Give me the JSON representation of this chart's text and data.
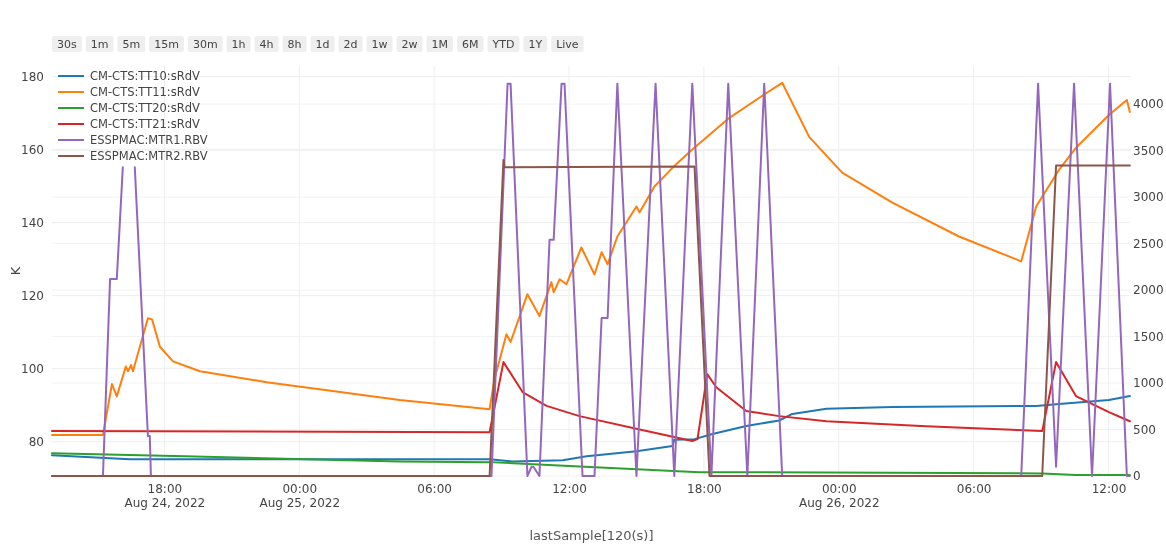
{
  "chart_data": {
    "type": "line",
    "xlabel": "lastSample[120(s)]",
    "ylabel": "K",
    "annotations": [
      "30s",
      "1m",
      "5m",
      "15m",
      "30m",
      "1h",
      "4h",
      "8h",
      "1d",
      "2d",
      "1w",
      "2w",
      "1M",
      "6M",
      "YTD",
      "1Y",
      "Live"
    ],
    "xlim": [
      "2022-08-24T13:00",
      "2022-08-26T13:00"
    ],
    "xticks": [
      {
        "value": "2022-08-24T18:00",
        "label": "18:00\nAug 24, 2022"
      },
      {
        "value": "2022-08-25T00:00",
        "label": "00:00\nAug 25, 2022"
      },
      {
        "value": "2022-08-25T06:00",
        "label": "06:00"
      },
      {
        "value": "2022-08-25T12:00",
        "label": "12:00"
      },
      {
        "value": "2022-08-25T18:00",
        "label": "18:00"
      },
      {
        "value": "2022-08-26T00:00",
        "label": "00:00\nAug 26, 2022"
      },
      {
        "value": "2022-08-26T06:00",
        "label": "06:00"
      },
      {
        "value": "2022-08-26T12:00",
        "label": "12:00"
      }
    ],
    "ylim": [
      70.6,
      182.9
    ],
    "yticks": [
      80,
      100,
      120,
      140,
      160,
      180
    ],
    "y2lim": [
      0,
      4410
    ],
    "y2ticks": [
      0,
      500,
      1000,
      1500,
      2000,
      2500,
      3000,
      3500,
      4000
    ],
    "grid": true,
    "legend": "top left",
    "line_style": "solid",
    "marker": "none",
    "series": [
      {
        "name": "CM-CTS:TT10:sRdV",
        "color": "#1f77b4",
        "x": [
          "2022-08-24T13:00",
          "2022-08-24T16:28",
          "2022-08-25T04:28",
          "2022-08-25T08:28",
          "2022-08-25T09:29",
          "2022-08-25T11:43",
          "2022-08-25T12:47",
          "2022-08-25T15:00",
          "2022-08-25T16:36",
          "2022-08-25T16:41",
          "2022-08-25T17:35",
          "2022-08-25T18:23",
          "2022-08-25T19:53",
          "2022-08-25T21:21",
          "2022-08-25T21:56",
          "2022-08-25T23:27",
          "2022-08-26T02:23",
          "2022-08-26T08:47",
          "2022-08-26T09:48",
          "2022-08-26T12:01",
          "2022-08-26T12:57"
        ],
        "values": [
          76.3,
          75.2,
          75.2,
          75.2,
          74.6,
          74.9,
          76,
          77.4,
          78.8,
          80.5,
          80.7,
          82.1,
          84.3,
          85.8,
          87.6,
          89,
          89.5,
          89.8,
          90.3,
          91.4,
          92.5
        ]
      },
      {
        "name": "CM-CTS:TT11:sRdV",
        "color": "#ff7f0e",
        "x": [
          "2022-08-24T13:00",
          "2022-08-24T15:16",
          "2022-08-24T15:40",
          "2022-08-24T15:53",
          "2022-08-24T16:17",
          "2022-08-24T16:23",
          "2022-08-24T16:31",
          "2022-08-24T16:36",
          "2022-08-24T17:16",
          "2022-08-24T17:27",
          "2022-08-24T17:48",
          "2022-08-24T18:23",
          "2022-08-24T19:35",
          "2022-08-24T22:33",
          "2022-08-25T01:29",
          "2022-08-25T04:28",
          "2022-08-25T08:28",
          "2022-08-25T08:41",
          "2022-08-25T09:13",
          "2022-08-25T09:24",
          "2022-08-25T10:09",
          "2022-08-25T10:41",
          "2022-08-25T11:13",
          "2022-08-25T11:19",
          "2022-08-25T11:35",
          "2022-08-25T11:53",
          "2022-08-25T12:33",
          "2022-08-25T13:08",
          "2022-08-25T13:27",
          "2022-08-25T13:43",
          "2022-08-25T14:09",
          "2022-08-25T15:00",
          "2022-08-25T15:08",
          "2022-08-25T15:48",
          "2022-08-25T16:36",
          "2022-08-25T17:29",
          "2022-08-25T19:08",
          "2022-08-25T20:47",
          "2022-08-25T21:29",
          "2022-08-25T22:41",
          "2022-08-26T00:09",
          "2022-08-26T02:23",
          "2022-08-26T05:21",
          "2022-08-26T08:07",
          "2022-08-26T08:47",
          "2022-08-26T08:55",
          "2022-08-26T09:48",
          "2022-08-26T10:33",
          "2022-08-26T12:01",
          "2022-08-26T12:49",
          "2022-08-26T12:57"
        ],
        "values": [
          81.8,
          81.8,
          95.8,
          92.4,
          100.6,
          99.3,
          101,
          99.3,
          113.8,
          113.5,
          106,
          102,
          99.3,
          96.3,
          93.9,
          91.4,
          88.9,
          97.1,
          109.4,
          107.3,
          120.4,
          114.4,
          123.7,
          120.9,
          124.5,
          123.1,
          133.2,
          125.8,
          131.9,
          128.6,
          136.2,
          144.4,
          142.8,
          149.9,
          155,
          160,
          168.7,
          175.5,
          178.3,
          163.5,
          153.7,
          145.5,
          136.2,
          129.4,
          144.4,
          145.8,
          154.5,
          160.5,
          169.5,
          173.6,
          170.3
        ]
      },
      {
        "name": "CM-CTS:TT20:sRdV",
        "color": "#2ca02c",
        "x": [
          "2022-08-24T13:00",
          "2022-08-24T18:55",
          "2022-08-25T04:28",
          "2022-08-25T08:28",
          "2022-08-25T12:28",
          "2022-08-25T17:48",
          "2022-08-25T20:28",
          "2022-08-26T09:03",
          "2022-08-26T10:33",
          "2022-08-26T12:57"
        ],
        "values": [
          76.8,
          76,
          74.6,
          74.4,
          73.2,
          71.6,
          71.6,
          71.3,
          70.9,
          70.9
        ]
      },
      {
        "name": "CM-CTS:TT21:sRdV",
        "color": "#d62728",
        "x": [
          "2022-08-24T13:00",
          "2022-08-25T08:28",
          "2022-08-25T09:05",
          "2022-08-25T09:56",
          "2022-08-25T11:00",
          "2022-08-25T12:28",
          "2022-08-25T15:27",
          "2022-08-25T17:29",
          "2022-08-25T17:43",
          "2022-08-25T18:09",
          "2022-08-25T18:33",
          "2022-08-25T19:53",
          "2022-08-25T21:21",
          "2022-08-25T23:27",
          "2022-08-26T03:53",
          "2022-08-26T09:03",
          "2022-08-26T09:40",
          "2022-08-26T10:33",
          "2022-08-26T12:01",
          "2022-08-26T12:57"
        ],
        "values": [
          82.9,
          82.6,
          101.8,
          93.6,
          89.8,
          87,
          82.9,
          80.2,
          80.7,
          98.5,
          94.9,
          88.4,
          87,
          85.6,
          84.2,
          82.9,
          101.8,
          92.5,
          88.1,
          85.6
        ]
      },
      {
        "name": "ESSPMAC:MTR1.RBV",
        "color": "#9467bd",
        "axis": "y2",
        "x": [
          "2022-08-24T13:00",
          "2022-08-24T15:16",
          "2022-08-24T15:35",
          "2022-08-24T15:53",
          "2022-08-24T16:09",
          "2022-08-24T16:25",
          "2022-08-24T16:41",
          "2022-08-24T17:16",
          "2022-08-24T17:21",
          "2022-08-24T17:24",
          "2022-08-25T08:33",
          "2022-08-25T09:16",
          "2022-08-25T09:24",
          "2022-08-25T10:09",
          "2022-08-25T10:20",
          "2022-08-25T10:25",
          "2022-08-25T10:41",
          "2022-08-25T11:08",
          "2022-08-25T11:19",
          "2022-08-25T11:40",
          "2022-08-25T11:48",
          "2022-08-25T12:36",
          "2022-08-25T13:08",
          "2022-08-25T13:27",
          "2022-08-25T13:43",
          "2022-08-25T14:09",
          "2022-08-25T15:00",
          "2022-08-25T15:51",
          "2022-08-25T16:41",
          "2022-08-25T17:29",
          "2022-08-25T18:20",
          "2022-08-25T19:05",
          "2022-08-25T19:56",
          "2022-08-25T20:41",
          "2022-08-25T21:29",
          "2022-08-26T08:07",
          "2022-08-26T08:52",
          "2022-08-26T09:40",
          "2022-08-26T10:28",
          "2022-08-26T11:16",
          "2022-08-26T12:04",
          "2022-08-26T12:49",
          "2022-08-26T12:57"
        ],
        "values": [
          0,
          0,
          2120,
          2120,
          3320,
          null,
          3320,
          430,
          430,
          0,
          0,
          4220,
          4220,
          0,
          100,
          100,
          0,
          2540,
          2540,
          4220,
          4220,
          0,
          0,
          1700,
          1700,
          4220,
          0,
          4220,
          0,
          4220,
          0,
          4220,
          0,
          4220,
          0,
          0,
          4220,
          100,
          4220,
          0,
          4220,
          0,
          0
        ]
      },
      {
        "name": "ESSPMAC:MTR2.RBV",
        "color": "#8c564b",
        "axis": "y2",
        "x": [
          "2022-08-24T13:00",
          "2022-08-25T08:28",
          "2022-08-25T09:05",
          "2022-08-25T09:08",
          "2022-08-25T17:35",
          "2022-08-25T18:15",
          "2022-08-26T09:03",
          "2022-08-26T09:40",
          "2022-08-26T12:57"
        ],
        "values": [
          0,
          0,
          3400,
          3320,
          3330,
          0,
          0,
          3340,
          3340
        ]
      }
    ]
  }
}
